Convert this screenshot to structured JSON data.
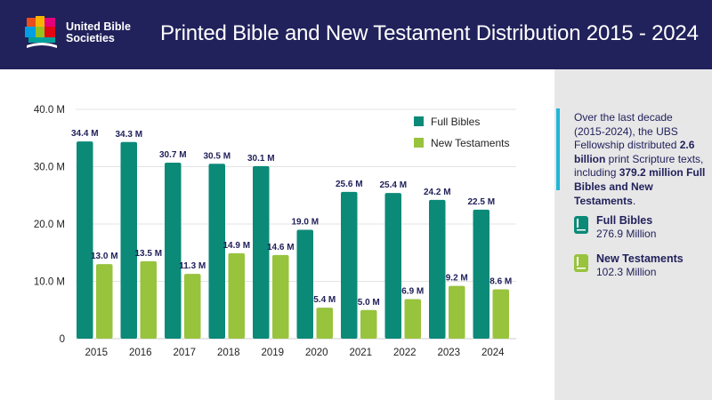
{
  "header": {
    "org_line1": "United Bible",
    "org_line2": "Societies",
    "title": "Printed Bible and New Testament Distribution 2015 - 2024"
  },
  "colors": {
    "header_bg": "#21215b",
    "full_bibles": "#0b8a78",
    "new_testaments": "#98c33d",
    "side_bg": "#e7e7e8",
    "accent": "#21b6d6"
  },
  "sidebar": {
    "intro_1": "Over the last decade (2015-2024), the UBS Fellowship distributed ",
    "intro_bold_1": "2.6 billion",
    "intro_2": " print Scripture texts, including ",
    "intro_bold_2": "379.2 million Full Bibles and New Testaments",
    "intro_3": ".",
    "stats": [
      {
        "label": "Full Bibles",
        "value": "276.9 Million",
        "icon": "book-icon"
      },
      {
        "label": "New Testaments",
        "value": "102.3 Million",
        "icon": "book-icon"
      }
    ]
  },
  "chart_data": {
    "type": "bar",
    "title": "Printed Bible and New Testament Distribution 2015 - 2024",
    "categories": [
      "2015",
      "2016",
      "2017",
      "2018",
      "2019",
      "2020",
      "2021",
      "2022",
      "2023",
      "2024"
    ],
    "series": [
      {
        "name": "Full Bibles",
        "values": [
          34.4,
          34.3,
          30.7,
          30.5,
          30.1,
          19.0,
          25.6,
          25.4,
          24.2,
          22.5
        ],
        "labels": [
          "34.4 M",
          "34.3 M",
          "30.7 M",
          "30.5 M",
          "30.1 M",
          "19.0 M",
          "25.6 M",
          "25.4 M",
          "24.2 M",
          "22.5 M"
        ],
        "color": "#0b8a78"
      },
      {
        "name": "New Testaments",
        "values": [
          13.0,
          13.5,
          11.3,
          14.9,
          14.6,
          5.4,
          5.0,
          6.9,
          9.2,
          8.6
        ],
        "labels": [
          "13.0 M",
          "13.5 M",
          "11.3 M",
          "14.9 M",
          "14.6 M",
          "5.4 M",
          "5.0 M",
          "6.9 M",
          "9.2 M",
          "8.6 M"
        ],
        "color": "#98c33d"
      }
    ],
    "yticks": [
      "0",
      "10.0 M",
      "20.0 M",
      "30.0 M",
      "40.0 M"
    ],
    "ytick_values": [
      0,
      10,
      20,
      30,
      40
    ],
    "ylim": [
      0,
      40
    ],
    "grid": true,
    "legend_position": "top-right",
    "xlabel": "",
    "ylabel": ""
  }
}
